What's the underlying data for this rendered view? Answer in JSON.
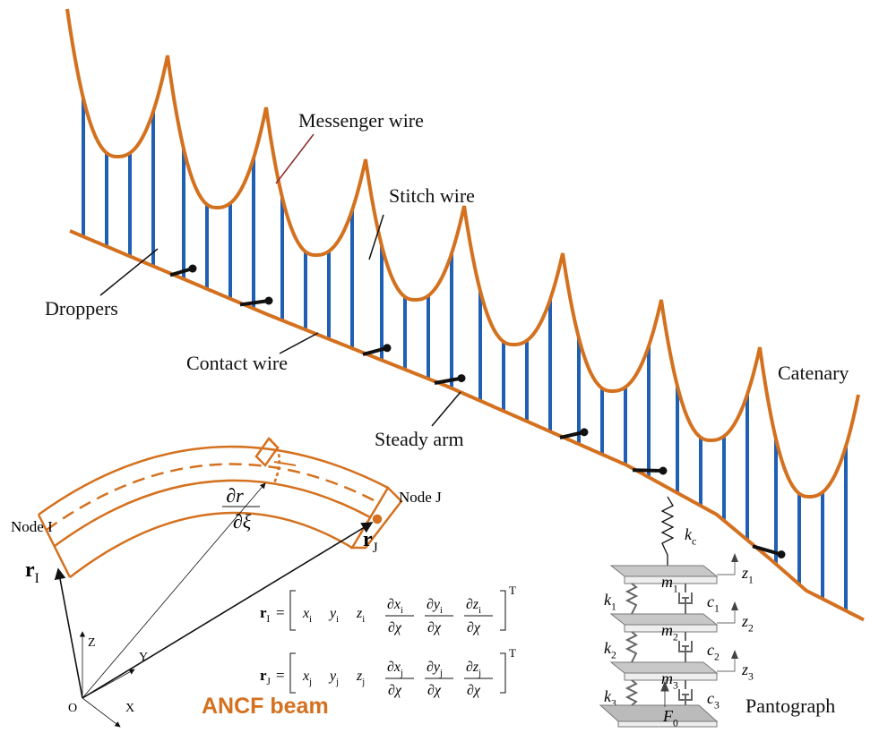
{
  "labels": {
    "messenger_wire": "Messenger wire",
    "stitch_wire": "Stitch wire",
    "droppers": "Droppers",
    "contact_wire": "Contact wire",
    "steady_arm": "Steady arm",
    "catenary": "Catenary"
  },
  "beam": {
    "node_i": "Node I",
    "node_j": "Node J",
    "r_i": {
      "base": "r",
      "sub": "I"
    },
    "r_j": {
      "base": "r",
      "sub": "J"
    },
    "tangent": {
      "num": "∂r",
      "den": "∂ξ"
    },
    "axis_z": "Z",
    "axis_y": "Y",
    "axis_x": "X",
    "origin": "O",
    "title": "ANCF beam",
    "equations": [
      {
        "lhs": {
          "base": "r",
          "sub": "I"
        },
        "equals": "=",
        "entries": [
          {
            "base": "x",
            "sub": "i"
          },
          {
            "base": "y",
            "sub": "i"
          },
          {
            "base": "z",
            "sub": "i"
          },
          {
            "num": {
              "base": "∂x",
              "sub": "i"
            },
            "den": "∂χ"
          },
          {
            "num": {
              "base": "∂y",
              "sub": "i"
            },
            "den": "∂χ"
          },
          {
            "num": {
              "base": "∂z",
              "sub": "i"
            },
            "den": "∂χ"
          }
        ],
        "sup": "T"
      },
      {
        "lhs": {
          "base": "r",
          "sub": "J"
        },
        "equals": "=",
        "entries": [
          {
            "base": "x",
            "sub": "j"
          },
          {
            "base": "y",
            "sub": "j"
          },
          {
            "base": "z",
            "sub": "j"
          },
          {
            "num": {
              "base": "∂x",
              "sub": "j"
            },
            "den": "∂χ"
          },
          {
            "num": {
              "base": "∂y",
              "sub": "j"
            },
            "den": "∂χ"
          },
          {
            "num": {
              "base": "∂z",
              "sub": "j"
            },
            "den": "∂χ"
          }
        ],
        "sup": "T"
      }
    ]
  },
  "pantograph": {
    "title": "Pantograph",
    "kc": {
      "base": "k",
      "sub": "c"
    },
    "stages": [
      {
        "m": {
          "base": "m",
          "sub": "1"
        },
        "k": {
          "base": "k",
          "sub": "1"
        },
        "c": {
          "base": "c",
          "sub": "1"
        },
        "z": {
          "base": "z",
          "sub": "1"
        }
      },
      {
        "m": {
          "base": "m",
          "sub": "2"
        },
        "k": {
          "base": "k",
          "sub": "2"
        },
        "c": {
          "base": "c",
          "sub": "2"
        },
        "z": {
          "base": "z",
          "sub": "2"
        }
      },
      {
        "m": {
          "base": "m",
          "sub": "3"
        },
        "k": {
          "base": "k",
          "sub": "3"
        },
        "c": {
          "base": "c",
          "sub": "3"
        },
        "z": {
          "base": "z",
          "sub": "3"
        }
      }
    ],
    "force": {
      "base": "F",
      "sub": "0"
    }
  }
}
